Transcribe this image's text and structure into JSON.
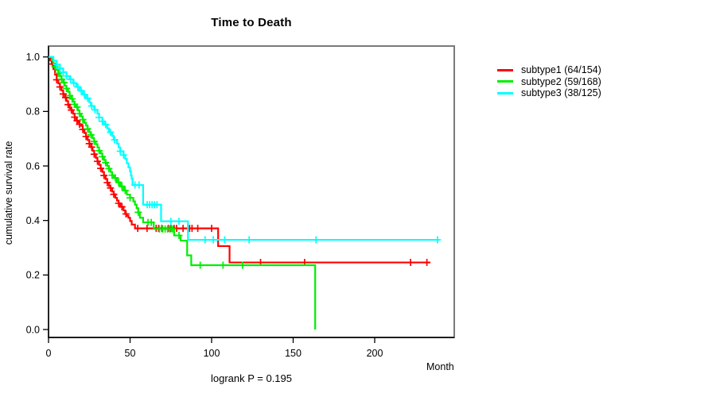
{
  "chart_data": {
    "type": "line",
    "subtype": "kaplan-meier-step-curves",
    "title": "Time to Death",
    "xlabel": "Month",
    "ylabel": "cumulative survival rate",
    "annotation": "logrank P = 0.195",
    "xlim": [
      0,
      248
    ],
    "ylim": [
      0.0,
      1.0
    ],
    "x_ticks": [
      "0",
      "50",
      "100",
      "150",
      "200"
    ],
    "y_ticks": [
      "0.0",
      "0.2",
      "0.4",
      "0.6",
      "0.8",
      "1.0"
    ],
    "grid": false,
    "legend_position": "right-outside",
    "censor_marker": "plus",
    "series": [
      {
        "name": "subtype1 (64/154)",
        "group": "subtype1",
        "events": 64,
        "n": 154,
        "color": "#ff0000",
        "end_time": 234,
        "steps": [
          [
            0,
            1.0
          ],
          [
            1,
            0.987
          ],
          [
            2,
            0.974
          ],
          [
            3,
            0.955
          ],
          [
            4,
            0.935
          ],
          [
            5,
            0.916
          ],
          [
            6,
            0.903
          ],
          [
            7,
            0.89
          ],
          [
            8,
            0.877
          ],
          [
            9,
            0.864
          ],
          [
            10,
            0.851
          ],
          [
            11,
            0.838
          ],
          [
            12,
            0.825
          ],
          [
            13,
            0.812
          ],
          [
            14,
            0.805
          ],
          [
            15,
            0.792
          ],
          [
            16,
            0.779
          ],
          [
            17,
            0.766
          ],
          [
            18,
            0.76
          ],
          [
            19,
            0.753
          ],
          [
            20,
            0.747
          ],
          [
            21,
            0.734
          ],
          [
            22,
            0.721
          ],
          [
            23,
            0.708
          ],
          [
            24,
            0.695
          ],
          [
            25,
            0.682
          ],
          [
            26,
            0.669
          ],
          [
            27,
            0.656
          ],
          [
            28,
            0.643
          ],
          [
            29,
            0.63
          ],
          [
            30,
            0.617
          ],
          [
            31,
            0.604
          ],
          [
            32,
            0.591
          ],
          [
            33,
            0.578
          ],
          [
            34,
            0.565
          ],
          [
            35,
            0.552
          ],
          [
            36,
            0.539
          ],
          [
            37,
            0.526
          ],
          [
            38,
            0.519
          ],
          [
            39,
            0.506
          ],
          [
            40,
            0.496
          ],
          [
            41,
            0.483
          ],
          [
            42,
            0.473
          ],
          [
            43,
            0.463
          ],
          [
            44,
            0.45
          ],
          [
            46,
            0.437
          ],
          [
            47,
            0.424
          ],
          [
            48,
            0.417
          ],
          [
            49,
            0.41
          ],
          [
            50,
            0.398
          ],
          [
            51,
            0.385
          ],
          [
            53,
            0.371
          ],
          [
            104,
            0.306
          ],
          [
            111,
            0.246
          ]
        ],
        "censor_times": [
          2.5,
          5,
          7,
          9,
          10.5,
          12,
          14,
          16,
          17.5,
          19,
          21,
          23,
          25,
          26.5,
          28,
          30,
          32,
          34,
          36,
          38,
          40,
          43,
          45,
          47.5,
          54.7,
          60.4,
          66,
          67.5,
          69.5,
          73.5,
          75,
          77,
          78.5,
          82.5,
          86.5,
          88,
          91.5,
          100,
          130,
          157,
          222,
          232
        ]
      },
      {
        "name": "subtype2 (59/168)",
        "group": "subtype2",
        "events": 59,
        "n": 168,
        "color": "#00ee00",
        "end_time": 163.5,
        "steps": [
          [
            0,
            1.0
          ],
          [
            2,
            0.988
          ],
          [
            3,
            0.976
          ],
          [
            4,
            0.964
          ],
          [
            5,
            0.952
          ],
          [
            6,
            0.94
          ],
          [
            7,
            0.93
          ],
          [
            8,
            0.918
          ],
          [
            9,
            0.906
          ],
          [
            10,
            0.894
          ],
          [
            11,
            0.884
          ],
          [
            12,
            0.872
          ],
          [
            13,
            0.858
          ],
          [
            14,
            0.846
          ],
          [
            15,
            0.836
          ],
          [
            16,
            0.826
          ],
          [
            17,
            0.816
          ],
          [
            18,
            0.804
          ],
          [
            19,
            0.792
          ],
          [
            20,
            0.782
          ],
          [
            21,
            0.77
          ],
          [
            22,
            0.758
          ],
          [
            23,
            0.748
          ],
          [
            24,
            0.736
          ],
          [
            25,
            0.724
          ],
          [
            26,
            0.714
          ],
          [
            27,
            0.702
          ],
          [
            28,
            0.69
          ],
          [
            29,
            0.68
          ],
          [
            30,
            0.668
          ],
          [
            31,
            0.656
          ],
          [
            32,
            0.646
          ],
          [
            33,
            0.634
          ],
          [
            34,
            0.622
          ],
          [
            35,
            0.612
          ],
          [
            36,
            0.6
          ],
          [
            37,
            0.59
          ],
          [
            38,
            0.578
          ],
          [
            39,
            0.566
          ],
          [
            40,
            0.556
          ],
          [
            42,
            0.54
          ],
          [
            44,
            0.525
          ],
          [
            46,
            0.51
          ],
          [
            48,
            0.495
          ],
          [
            50,
            0.483
          ],
          [
            52,
            0.47
          ],
          [
            53,
            0.458
          ],
          [
            54,
            0.445
          ],
          [
            55,
            0.43
          ],
          [
            56,
            0.41
          ],
          [
            58,
            0.393
          ],
          [
            64.5,
            0.369
          ],
          [
            77,
            0.345
          ],
          [
            81,
            0.326
          ],
          [
            85,
            0.272
          ],
          [
            87.5,
            0.236
          ],
          [
            163.5,
            0.0
          ]
        ],
        "censor_times": [
          4,
          6,
          8,
          9.5,
          11,
          13,
          14.5,
          16,
          17.5,
          19,
          21,
          24,
          26,
          28,
          31,
          33,
          35,
          37,
          39,
          41,
          43,
          45,
          47,
          50,
          55,
          61,
          63,
          68,
          70,
          71.5,
          73,
          74.5,
          76,
          80,
          93,
          107,
          119
        ]
      },
      {
        "name": "subtype3 (38/125)",
        "group": "subtype3",
        "events": 38,
        "n": 125,
        "color": "#00ffff",
        "end_time": 239.5,
        "steps": [
          [
            0,
            1.0
          ],
          [
            3,
            0.986
          ],
          [
            5,
            0.972
          ],
          [
            7,
            0.958
          ],
          [
            9,
            0.944
          ],
          [
            11,
            0.93
          ],
          [
            13,
            0.918
          ],
          [
            15,
            0.904
          ],
          [
            17,
            0.89
          ],
          [
            19,
            0.876
          ],
          [
            21,
            0.862
          ],
          [
            23,
            0.848
          ],
          [
            25,
            0.834
          ],
          [
            26,
            0.82
          ],
          [
            28,
            0.806
          ],
          [
            30,
            0.792
          ],
          [
            31,
            0.778
          ],
          [
            33,
            0.764
          ],
          [
            34,
            0.752
          ],
          [
            36,
            0.738
          ],
          [
            37,
            0.724
          ],
          [
            39,
            0.71
          ],
          [
            40,
            0.696
          ],
          [
            42,
            0.682
          ],
          [
            43,
            0.668
          ],
          [
            44,
            0.654
          ],
          [
            46,
            0.64
          ],
          [
            47,
            0.626
          ],
          [
            48,
            0.61
          ],
          [
            49,
            0.595
          ],
          [
            50,
            0.58
          ],
          [
            50.5,
            0.565
          ],
          [
            51,
            0.553
          ],
          [
            51.5,
            0.53
          ],
          [
            58,
            0.458
          ],
          [
            69,
            0.397
          ],
          [
            85.5,
            0.329
          ]
        ],
        "censor_times": [
          5,
          7,
          9,
          11,
          13.5,
          15.5,
          18,
          20,
          22,
          24,
          26.5,
          28.5,
          31,
          33,
          35,
          38,
          40.5,
          44,
          46,
          53,
          55.5,
          60.5,
          62,
          63.5,
          65,
          66.5,
          75,
          80,
          96,
          101,
          108,
          123,
          164,
          238.5
        ]
      }
    ]
  }
}
